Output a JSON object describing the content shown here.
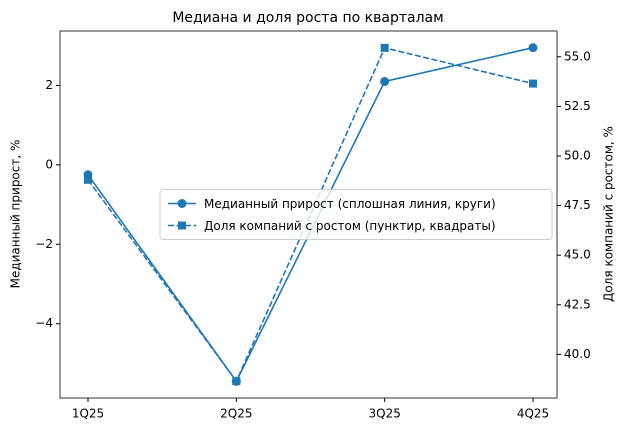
{
  "chart_data": {
    "type": "line",
    "title": "Медиана и доля роста по кварталам",
    "y_label": "Медианный прирост, %",
    "y2_label": "Доля компаний с ростом, %",
    "categories": [
      "1Q25",
      "2Q25",
      "3Q25",
      "4Q25"
    ],
    "series": [
      {
        "name": "Медианный прирост (сплошная линия, круги)",
        "color": "#1f77b4",
        "linestyle": "solid",
        "marker": "circle",
        "values": [
          -0.25,
          -5.45,
          2.1,
          2.95
        ]
      },
      {
        "name": "Доля компаний с ростом (пунктир, квадраты)",
        "color": "#1f77b4",
        "linestyle": "dashed",
        "marker": "square",
        "axis": "y2",
        "values": [
          48.8,
          38.65,
          55.45,
          53.65
        ]
      }
    ],
    "ylim": [
      -5.87,
      3.37
    ],
    "yticks": [
      {
        "value": -4,
        "label": "−4"
      },
      {
        "value": -2,
        "label": "−2"
      },
      0,
      2
    ],
    "y2lim": [
      37.8,
      56.3
    ],
    "y2ticks": [
      {
        "value": 40,
        "label": "40.0"
      },
      {
        "value": 42.5,
        "label": "42.5"
      },
      {
        "value": 45,
        "label": "45.0"
      },
      {
        "value": 47.5,
        "label": "47.5"
      },
      {
        "value": 50,
        "label": "50.0"
      },
      {
        "value": 52.5,
        "label": "52.5"
      },
      {
        "value": 55,
        "label": "55.0"
      }
    ],
    "legend": "center right"
  }
}
